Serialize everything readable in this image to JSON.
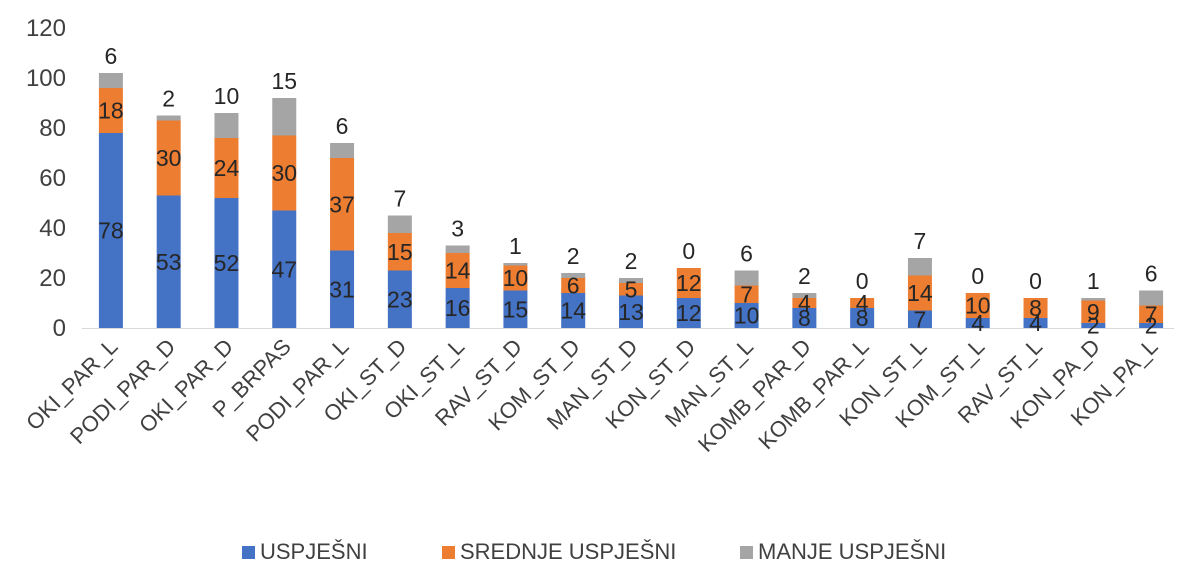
{
  "chart_data": {
    "type": "bar",
    "stacked": true,
    "title": "",
    "xlabel": "",
    "ylabel": "",
    "ylim": [
      0,
      120
    ],
    "yticks": [
      0,
      20,
      40,
      60,
      80,
      100,
      120
    ],
    "grid": false,
    "legend_position": "bottom",
    "categories": [
      "OKI_PAR_L",
      "PODI_PAR_D",
      "OKI_PAR_D",
      "P_BRPAS",
      "PODI_PAR_L",
      "OKI_ST_D",
      "OKI_ST_L",
      "RAV_ST_D",
      "KOM_ST_D",
      "MAN_ST_D",
      "KON_ST_D",
      "MAN_ST_L",
      "KOMB_PAR_D",
      "KOMB_PAR_L",
      "KON_ST_L",
      "KOM_ST_L",
      "RAV_ST_L",
      "KON_PA_D",
      "KON_PA_L"
    ],
    "series": [
      {
        "name": "USPJEŠNI",
        "color": "#4472C4",
        "values": [
          78,
          53,
          52,
          47,
          31,
          23,
          16,
          15,
          14,
          13,
          12,
          10,
          8,
          8,
          7,
          4,
          4,
          2,
          2
        ]
      },
      {
        "name": "SREDNJE USPJEŠNI",
        "color": "#ED7D31",
        "values": [
          18,
          30,
          24,
          30,
          37,
          15,
          14,
          10,
          6,
          5,
          12,
          7,
          4,
          4,
          14,
          10,
          8,
          9,
          7
        ]
      },
      {
        "name": "MANJE USPJEŠNI",
        "color": "#A5A5A5",
        "values": [
          6,
          2,
          10,
          15,
          6,
          7,
          3,
          1,
          2,
          2,
          0,
          6,
          2,
          0,
          7,
          0,
          0,
          1,
          6
        ]
      }
    ]
  }
}
